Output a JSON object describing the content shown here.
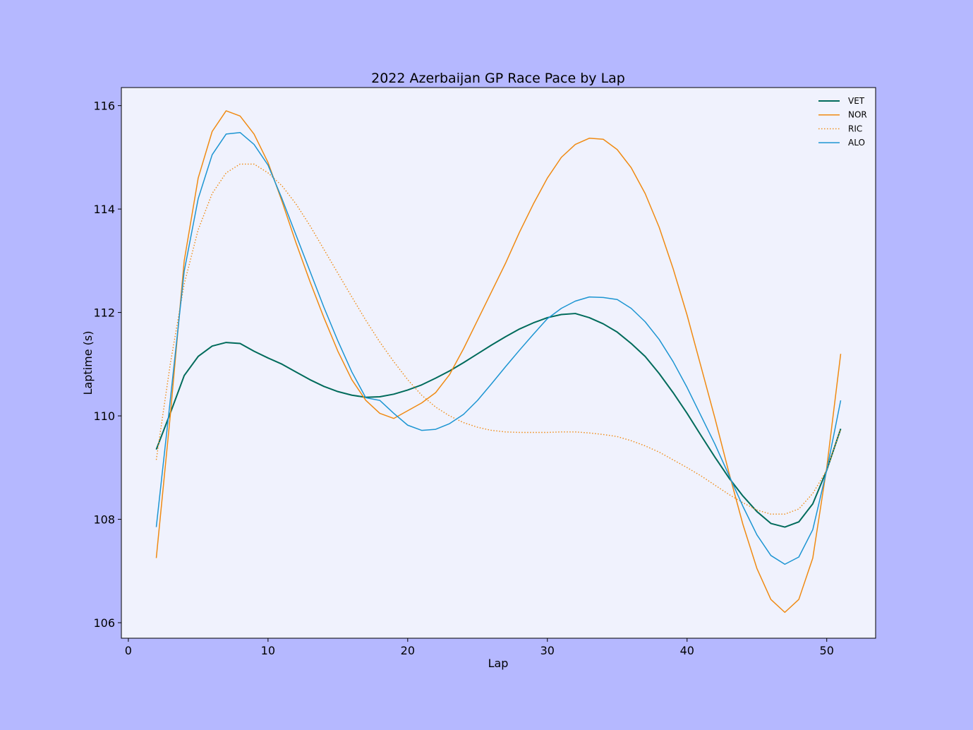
{
  "chart_data": {
    "type": "line",
    "title": "2022 Azerbaijan GP Race Pace by Lap",
    "xlabel": "Lap",
    "ylabel": "Laptime (s)",
    "xlim": [
      -0.5,
      53.5
    ],
    "ylim": [
      105.7,
      116.35
    ],
    "xticks": [
      0,
      10,
      20,
      30,
      40,
      50
    ],
    "yticks": [
      106,
      108,
      110,
      112,
      114,
      116
    ],
    "grid": false,
    "legend_position": "top-right",
    "plot_background": "#f0f2fd",
    "figure_background": "#b5b8ff",
    "x": [
      2,
      3,
      4,
      5,
      6,
      7,
      8,
      9,
      10,
      11,
      12,
      13,
      14,
      15,
      16,
      17,
      18,
      19,
      20,
      21,
      22,
      23,
      24,
      25,
      26,
      27,
      28,
      29,
      30,
      31,
      32,
      33,
      34,
      35,
      36,
      37,
      38,
      39,
      40,
      41,
      42,
      43,
      44,
      45,
      46,
      47,
      48,
      49,
      50,
      51
    ],
    "series": [
      {
        "name": "VET",
        "color": "#006b5b",
        "style": "solid",
        "width": 2.0,
        "values": [
          109.35,
          110.05,
          110.78,
          111.15,
          111.35,
          111.42,
          111.4,
          111.25,
          111.12,
          111.0,
          110.85,
          110.7,
          110.57,
          110.47,
          110.4,
          110.36,
          110.37,
          110.42,
          110.5,
          110.6,
          110.73,
          110.87,
          111.03,
          111.2,
          111.37,
          111.53,
          111.68,
          111.8,
          111.9,
          111.96,
          111.98,
          111.9,
          111.78,
          111.62,
          111.4,
          111.15,
          110.82,
          110.45,
          110.05,
          109.62,
          109.2,
          108.8,
          108.45,
          108.15,
          107.92,
          107.85,
          107.95,
          108.3,
          108.95,
          109.75
        ]
      },
      {
        "name": "NOR",
        "color": "#f08a12",
        "style": "solid",
        "width": 1.5,
        "values": [
          107.25,
          110.0,
          113.0,
          114.6,
          115.5,
          115.9,
          115.8,
          115.45,
          114.9,
          114.15,
          113.35,
          112.6,
          111.9,
          111.25,
          110.7,
          110.3,
          110.05,
          109.95,
          110.1,
          110.25,
          110.45,
          110.8,
          111.3,
          111.85,
          112.4,
          112.95,
          113.55,
          114.1,
          114.6,
          115.0,
          115.25,
          115.37,
          115.35,
          115.15,
          114.8,
          114.3,
          113.65,
          112.85,
          111.95,
          110.95,
          109.95,
          108.9,
          107.9,
          107.05,
          106.45,
          106.2,
          106.45,
          107.25,
          109.0,
          111.2
        ]
      },
      {
        "name": "RIC",
        "color": "#f08a12",
        "style": "dotted",
        "width": 1.5,
        "values": [
          109.15,
          111.0,
          112.55,
          113.6,
          114.3,
          114.7,
          114.87,
          114.87,
          114.7,
          114.45,
          114.1,
          113.68,
          113.22,
          112.76,
          112.3,
          111.85,
          111.43,
          111.05,
          110.7,
          110.4,
          110.17,
          110.0,
          109.87,
          109.78,
          109.72,
          109.69,
          109.68,
          109.68,
          109.68,
          109.69,
          109.69,
          109.67,
          109.64,
          109.6,
          109.52,
          109.42,
          109.3,
          109.15,
          109.0,
          108.84,
          108.66,
          108.48,
          108.32,
          108.18,
          108.1,
          108.1,
          108.2,
          108.5,
          108.95,
          109.75
        ]
      },
      {
        "name": "ALO",
        "color": "#1c95d2",
        "style": "solid",
        "width": 1.5,
        "values": [
          107.85,
          110.3,
          112.8,
          114.2,
          115.05,
          115.45,
          115.48,
          115.25,
          114.85,
          114.2,
          113.5,
          112.8,
          112.1,
          111.45,
          110.85,
          110.35,
          110.3,
          110.05,
          109.82,
          109.72,
          109.74,
          109.85,
          110.03,
          110.3,
          110.62,
          110.95,
          111.27,
          111.58,
          111.88,
          112.08,
          112.22,
          112.3,
          112.29,
          112.25,
          112.08,
          111.82,
          111.48,
          111.05,
          110.55,
          110.0,
          109.45,
          108.85,
          108.25,
          107.7,
          107.3,
          107.13,
          107.27,
          107.8,
          108.95,
          110.3
        ]
      }
    ]
  }
}
